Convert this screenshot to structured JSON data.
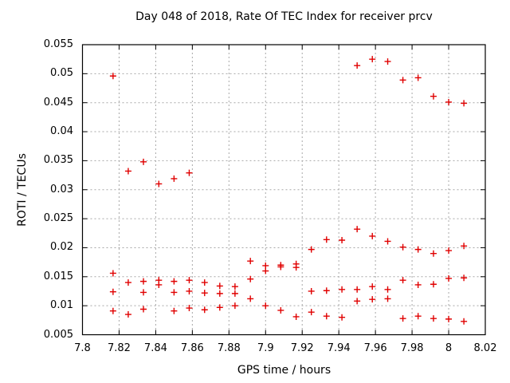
{
  "chart_data": {
    "type": "scatter",
    "title": "Day 048 of 2018, Rate Of TEC Index for receiver prcv",
    "xlabel": "GPS time / hours",
    "ylabel": "ROTI / TECUs",
    "xlim": [
      7.8,
      8.02
    ],
    "ylim": [
      0.005,
      0.055
    ],
    "xticks": [
      7.8,
      7.82,
      7.84,
      7.86,
      7.88,
      7.9,
      7.92,
      7.94,
      7.96,
      7.98,
      8.0,
      8.02
    ],
    "xtick_labels": [
      "7.8",
      "7.82",
      "7.84",
      "7.86",
      "7.88",
      "7.9",
      "7.92",
      "7.94",
      "7.96",
      "7.98",
      "8",
      "8.02"
    ],
    "yticks": [
      0.005,
      0.01,
      0.015,
      0.02,
      0.025,
      0.03,
      0.035,
      0.04,
      0.045,
      0.05,
      0.055
    ],
    "ytick_labels": [
      "0.005",
      "0.01",
      "0.015",
      "0.02",
      "0.025",
      "0.03",
      "0.035",
      "0.04",
      "0.045",
      "0.05",
      "0.055"
    ],
    "grid": true,
    "legend": false,
    "marker": "plus",
    "marker_color": "#e00000",
    "grid_color": "#a8a8a8",
    "border_color": "#000000",
    "points": [
      [
        7.8167,
        0.0496
      ],
      [
        7.8167,
        0.0156
      ],
      [
        7.8167,
        0.0124
      ],
      [
        7.8167,
        0.0091
      ],
      [
        7.825,
        0.0332
      ],
      [
        7.825,
        0.014
      ],
      [
        7.825,
        0.0085
      ],
      [
        7.8333,
        0.0348
      ],
      [
        7.8333,
        0.0142
      ],
      [
        7.8333,
        0.0123
      ],
      [
        7.8333,
        0.0094
      ],
      [
        7.8417,
        0.031
      ],
      [
        7.8417,
        0.0144
      ],
      [
        7.8417,
        0.0136
      ],
      [
        7.85,
        0.0319
      ],
      [
        7.85,
        0.0142
      ],
      [
        7.85,
        0.0123
      ],
      [
        7.85,
        0.0091
      ],
      [
        7.8583,
        0.0329
      ],
      [
        7.8583,
        0.0144
      ],
      [
        7.8583,
        0.0125
      ],
      [
        7.8583,
        0.0096
      ],
      [
        7.8667,
        0.014
      ],
      [
        7.8667,
        0.0122
      ],
      [
        7.8667,
        0.0093
      ],
      [
        7.875,
        0.0134
      ],
      [
        7.875,
        0.0121
      ],
      [
        7.875,
        0.0097
      ],
      [
        7.8833,
        0.0133
      ],
      [
        7.8833,
        0.0121
      ],
      [
        7.8833,
        0.01
      ],
      [
        7.8917,
        0.0177
      ],
      [
        7.8917,
        0.0146
      ],
      [
        7.8917,
        0.0112
      ],
      [
        7.9,
        0.0169
      ],
      [
        7.9,
        0.016
      ],
      [
        7.9,
        0.01
      ],
      [
        7.9083,
        0.017
      ],
      [
        7.9083,
        0.0167
      ],
      [
        7.9083,
        0.0092
      ],
      [
        7.9167,
        0.0172
      ],
      [
        7.9167,
        0.0166
      ],
      [
        7.9167,
        0.0081
      ],
      [
        7.925,
        0.0197
      ],
      [
        7.925,
        0.0125
      ],
      [
        7.925,
        0.0089
      ],
      [
        7.9333,
        0.0214
      ],
      [
        7.9333,
        0.0126
      ],
      [
        7.9333,
        0.0082
      ],
      [
        7.9417,
        0.0213
      ],
      [
        7.9417,
        0.0128
      ],
      [
        7.9417,
        0.008
      ],
      [
        7.95,
        0.0514
      ],
      [
        7.95,
        0.0232
      ],
      [
        7.95,
        0.0128
      ],
      [
        7.95,
        0.0108
      ],
      [
        7.9583,
        0.0525
      ],
      [
        7.9583,
        0.022
      ],
      [
        7.9583,
        0.0133
      ],
      [
        7.9583,
        0.0111
      ],
      [
        7.9667,
        0.0521
      ],
      [
        7.9667,
        0.0211
      ],
      [
        7.9667,
        0.0128
      ],
      [
        7.9667,
        0.0112
      ],
      [
        7.975,
        0.0489
      ],
      [
        7.975,
        0.0201
      ],
      [
        7.975,
        0.0144
      ],
      [
        7.975,
        0.0078
      ],
      [
        7.9833,
        0.0493
      ],
      [
        7.9833,
        0.0197
      ],
      [
        7.9833,
        0.0136
      ],
      [
        7.9833,
        0.0082
      ],
      [
        7.9917,
        0.0461
      ],
      [
        7.9917,
        0.019
      ],
      [
        7.9917,
        0.0137
      ],
      [
        7.9917,
        0.0078
      ],
      [
        8.0,
        0.0451
      ],
      [
        8.0,
        0.0195
      ],
      [
        8.0,
        0.0147
      ],
      [
        8.0,
        0.0077
      ],
      [
        8.0083,
        0.0449
      ],
      [
        8.0083,
        0.0203
      ],
      [
        8.0083,
        0.0148
      ],
      [
        8.0083,
        0.0073
      ]
    ]
  }
}
